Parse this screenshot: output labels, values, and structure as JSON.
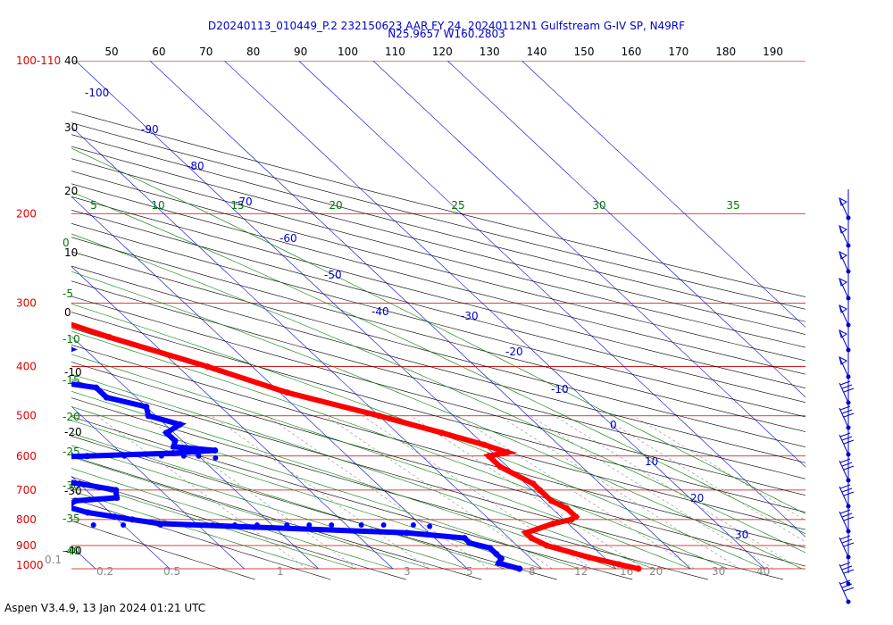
{
  "chart_data": {
    "type": "line",
    "title_line1": "D20240113_010449_P.2 232150623 AAR FY 24, 20240112N1 Gulfstream G-IV SP, N49RF",
    "title_line2": "N25.9657 W160.2803",
    "footer": "Aspen V3.4.9, 13 Jan 2024  01:21 UTC",
    "pressure_axis": {
      "scale": "log",
      "range_hpa": [
        100,
        1000
      ],
      "labels": [
        "100-110",
        "200",
        "300",
        "400",
        "500",
        "600",
        "700",
        "800",
        "900",
        "1000"
      ]
    },
    "altitude_kft_labels": [
      "40",
      "30",
      "20",
      "10",
      "0",
      "-10",
      "-20",
      "-30",
      "-40"
    ],
    "top_axis_labels": [
      "50",
      "60",
      "70",
      "80",
      "90",
      "100",
      "110",
      "120",
      "130",
      "140",
      "150",
      "160",
      "170",
      "180",
      "190"
    ],
    "isotherm_labels": [
      "-100",
      "-90",
      "-80",
      "-70",
      "-60",
      "-50",
      "-40",
      "-30",
      "-20",
      "-10",
      "0",
      "10",
      "20",
      "30"
    ],
    "dry_adiabat_labels": [
      "5",
      "10",
      "15",
      "20",
      "25",
      "30",
      "35"
    ],
    "moist_adiabat_labels": [
      "0",
      "-5",
      "-10",
      "-15",
      "-20",
      "-25",
      "-30",
      "-35",
      "-40"
    ],
    "mixing_ratio_labels": [
      "0.1",
      "0.2",
      "0.5",
      "1",
      "2",
      "3",
      "5",
      "8",
      "12",
      "16",
      "20",
      "30",
      "40"
    ],
    "colors": {
      "temperature": "#ff0000",
      "dewpoint": "#0000ff",
      "isobar": "#cc0000",
      "isotherm": "#0000cc",
      "adiabat": "#000000",
      "moist_adiabat": "#007700",
      "mixing": "#888888"
    },
    "series": [
      {
        "name": "Temperature",
        "p": [
          185,
          195,
          203,
          210,
          230,
          250,
          300,
          350,
          400,
          450,
          500,
          540,
          570,
          590,
          600,
          630,
          680,
          700,
          735,
          760,
          790,
          800,
          815,
          850,
          870,
          900,
          950,
          980,
          1000
        ],
        "t": [
          -59,
          -60,
          -57,
          -58,
          -57,
          -54,
          -44,
          -35,
          -26,
          -19,
          -10,
          -4,
          0,
          2,
          -1,
          -1,
          1,
          1,
          1,
          2,
          2,
          1,
          -2,
          -7,
          -7,
          -6,
          -2,
          1,
          3
        ]
      },
      {
        "name": "Dewpoint",
        "p": [
          235,
          250,
          280,
          300,
          325,
          345,
          370,
          390,
          405,
          425,
          440,
          460,
          480,
          500,
          520,
          540,
          560,
          575,
          585,
          592,
          600,
          605,
          615,
          625,
          640,
          660,
          680,
          700,
          725,
          735,
          755,
          775,
          790,
          800,
          815,
          850,
          870,
          890,
          910,
          935,
          955,
          975,
          1000
        ],
        "td": [
          -74,
          -72,
          -65,
          -60,
          -52,
          -45,
          -42,
          -48,
          -52,
          -50,
          -44,
          -44,
          -40,
          -41,
          -38,
          -41,
          -41,
          -42,
          -37,
          -43,
          -55,
          -65,
          -72,
          -73,
          -69,
          -67,
          -60,
          -56,
          -57,
          -63,
          -65,
          -63,
          -60,
          -58,
          -55,
          -23,
          -16,
          -16,
          -14,
          -14,
          -14,
          -15,
          -13
        ]
      },
      {
        "name": "Dewpoint-sparse",
        "p": [
          590,
          590,
          590,
          590,
          590,
          590,
          590,
          595,
          600,
          600,
          600,
          600,
          605,
          820,
          820,
          820,
          820,
          820,
          820,
          820,
          820,
          820,
          820,
          820,
          820,
          820,
          820,
          825
        ],
        "td": [
          -70,
          -68,
          -66,
          -64,
          -62,
          -61,
          -59,
          -57,
          -50,
          -45,
          -42,
          -40,
          -38,
          -68,
          -64,
          -60,
          -55,
          -51,
          -48,
          -45,
          -42,
          -38,
          -35,
          -32,
          -28,
          -25,
          -21,
          -19
        ]
      }
    ],
    "wind_barbs": {
      "count": 20
    }
  }
}
